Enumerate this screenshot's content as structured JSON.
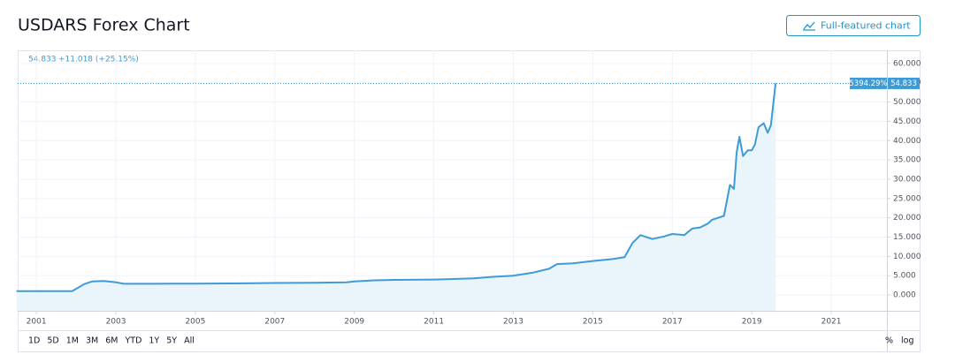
{
  "title": "USDARS Forex Chart",
  "button": "Full-featured chart",
  "header": {
    "price": "54.833",
    "change": "+11.018 (+25.15%)"
  },
  "range_buttons": [
    "1D",
    "5D",
    "1M",
    "3M",
    "6M",
    "YTD",
    "1Y",
    "5Y",
    "All"
  ],
  "scale_buttons": [
    "%",
    "log"
  ],
  "chart_data": {
    "type": "line",
    "color": "#3d9bd6",
    "fill": "#eaf4fb",
    "grid": true,
    "log_scale": false,
    "x": [
      2000.5,
      2001.9,
      2002.0,
      2002.2,
      2002.4,
      2002.7,
      2003.0,
      2003.2,
      2003.5,
      2004.0,
      2004.5,
      2005.0,
      2006.0,
      2007.0,
      2008.0,
      2008.8,
      2009.0,
      2009.5,
      2010.0,
      2011.0,
      2012.0,
      2012.5,
      2013.0,
      2013.5,
      2013.9,
      2014.1,
      2014.5,
      2015.0,
      2015.5,
      2015.8,
      2016.0,
      2016.2,
      2016.5,
      2016.8,
      2017.0,
      2017.3,
      2017.5,
      2017.7,
      2017.9,
      2018.0,
      2018.3,
      2018.45,
      2018.55,
      2018.62,
      2018.69,
      2018.78,
      2018.9,
      2019.0,
      2019.08,
      2019.17,
      2019.3,
      2019.4,
      2019.48,
      2019.6
    ],
    "values": [
      1.0,
      1.0,
      1.6,
      2.8,
      3.5,
      3.6,
      3.3,
      2.9,
      2.9,
      2.9,
      2.95,
      2.95,
      3.0,
      3.1,
      3.15,
      3.3,
      3.5,
      3.8,
      3.9,
      4.0,
      4.3,
      4.7,
      5.0,
      5.8,
      6.8,
      8.0,
      8.2,
      8.8,
      9.3,
      9.8,
      13.5,
      15.5,
      14.5,
      15.2,
      15.8,
      15.5,
      17.2,
      17.5,
      18.5,
      19.5,
      20.5,
      28.5,
      27.5,
      37.0,
      41.0,
      36.0,
      37.5,
      37.5,
      39.0,
      43.5,
      44.5,
      42.0,
      44.0,
      54.833
    ],
    "xlim": [
      2000.53,
      2022.4
    ],
    "ylim": [
      -4.1,
      63.4
    ],
    "xticks": [
      2001,
      2003,
      2005,
      2007,
      2009,
      2011,
      2013,
      2015,
      2017,
      2019,
      2021
    ],
    "yticks": [
      {
        "value": 0,
        "label": "0.000"
      },
      {
        "value": 5,
        "label": "5.000"
      },
      {
        "value": 10,
        "label": "10.000"
      },
      {
        "value": 15,
        "label": "15.000"
      },
      {
        "value": 20,
        "label": "20.000"
      },
      {
        "value": 25,
        "label": "25.000"
      },
      {
        "value": 30,
        "label": "30.000"
      },
      {
        "value": 35,
        "label": "35.000"
      },
      {
        "value": 40,
        "label": "40.000"
      },
      {
        "value": 45,
        "label": "45.000"
      },
      {
        "value": 50,
        "label": "50.000"
      },
      {
        "value": 55,
        "label": "55.000"
      },
      {
        "value": 60,
        "label": "60.000"
      }
    ],
    "price_tag": {
      "change_pct": "5394.29%",
      "price": 54.833
    }
  }
}
